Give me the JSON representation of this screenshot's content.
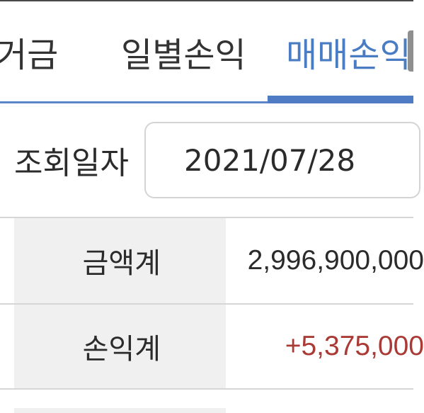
{
  "tabs": {
    "partial_label": "거금",
    "daily_label": "일별손익",
    "trade_label": "매매손익"
  },
  "query": {
    "label": "조회일자",
    "date_value": "2021/07/28"
  },
  "summary": {
    "amount_label": "금액계",
    "amount_value": "2,996,900,000",
    "pl_label": "손익계",
    "pl_value": "+5,375,000"
  },
  "colors": {
    "active_tab": "#4a7cc4",
    "underline": "#4f7bc4",
    "header_cell_bg": "#f0f0f0",
    "profit_text": "#a93a35"
  }
}
